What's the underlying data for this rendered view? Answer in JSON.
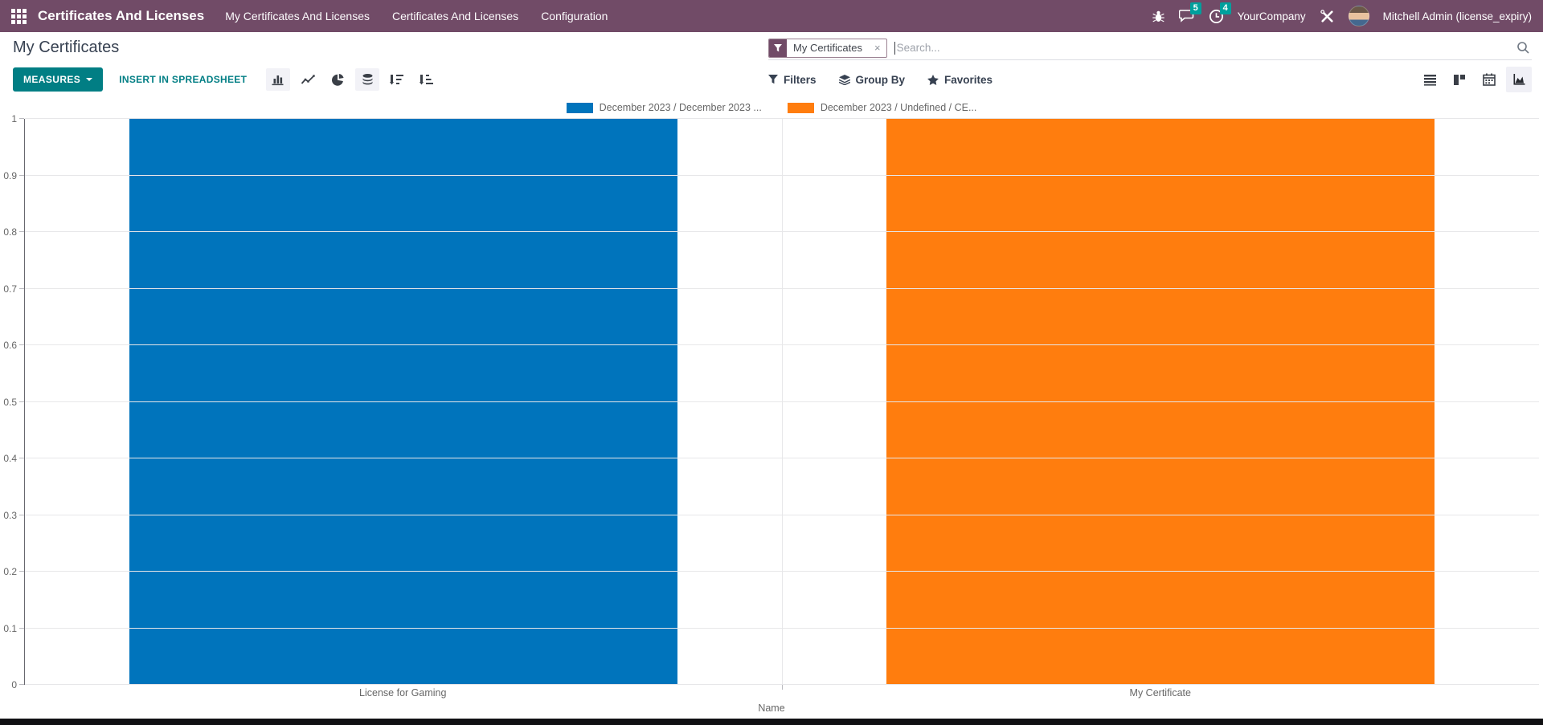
{
  "navbar": {
    "brand": "Certificates And Licenses",
    "menu_items": [
      {
        "label": "My Certificates And Licenses"
      },
      {
        "label": "Certificates And Licenses"
      },
      {
        "label": "Configuration"
      }
    ],
    "messages_badge": "5",
    "activities_badge": "4",
    "company": "YourCompany",
    "user": "Mitchell Admin (license_expiry)"
  },
  "control_panel": {
    "title": "My Certificates",
    "measures": "MEASURES",
    "insert_in_spreadsheet": "INSERT IN SPREADSHEET",
    "filters": "Filters",
    "group_by": "Group By",
    "favorites": "Favorites",
    "search": {
      "facet_label": "My Certificates",
      "facet_close": "×",
      "placeholder": "Search..."
    }
  },
  "chart_data": {
    "type": "bar",
    "title": "",
    "categories": [
      "License for Gaming",
      "My Certificate"
    ],
    "series": [
      {
        "name": "December 2023 / December 2023 ...",
        "color": "#0074bc",
        "values": [
          1,
          0
        ]
      },
      {
        "name": "December 2023 / Undefined / CE...",
        "color": "#ff7d0e",
        "values": [
          0,
          1
        ]
      }
    ],
    "xlabel": "Name",
    "ylim": [
      0,
      1
    ],
    "ytick_step": 0.1,
    "grid": true,
    "legend_position": "top"
  },
  "colors": {
    "navbar_bg": "#714b67",
    "accent_teal": "#017e84",
    "badge_teal": "#00a09d",
    "bar_blue": "#0074bc",
    "bar_orange": "#ff7d0e",
    "gridline": "#e7e7e9"
  }
}
